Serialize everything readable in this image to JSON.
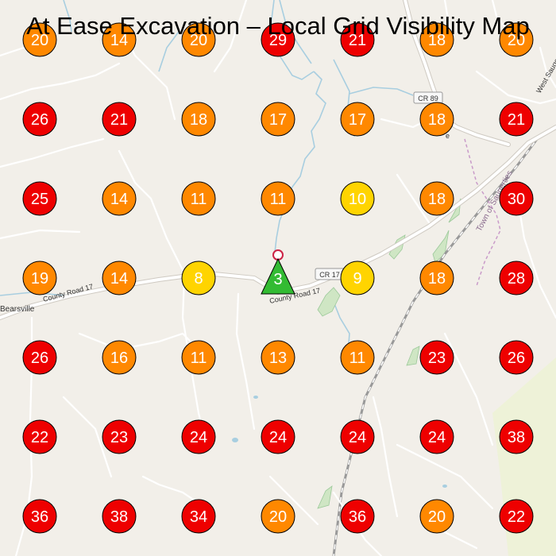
{
  "title": "At Ease Excavation – Local Grid Visibility Map",
  "colors": {
    "red": "#ee0000",
    "orange": "#ff8800",
    "yellow": "#ffd400",
    "center": "#33bb33",
    "water": "#a8cee0",
    "road": "#ffffff",
    "background": "#f2efe9"
  },
  "color_thresholds": {
    "yellow_max": 10,
    "orange_max": 20
  },
  "map_labels": {
    "road_cr89": "CR 89",
    "road_cr17": "CR 17",
    "county_road_west": "County Road 17",
    "county_road_center": "County Road 17",
    "place_bearsville": "Bearsville",
    "road_west_saugerties": "West Saugerties",
    "town_label": "Town of Saugerties",
    "letter_e": "e"
  },
  "center_marker": {
    "rank": "3",
    "icon": "map-pin-icon"
  },
  "grid": {
    "rows": [
      [
        "20",
        "14",
        "20",
        "29",
        "21",
        "18",
        "20"
      ],
      [
        "26",
        "21",
        "18",
        "17",
        "17",
        "18",
        "21"
      ],
      [
        "25",
        "14",
        "11",
        "11",
        "10",
        "18",
        "30"
      ],
      [
        "19",
        "14",
        "8",
        "3",
        "9",
        "18",
        "28"
      ],
      [
        "26",
        "16",
        "11",
        "13",
        "11",
        "23",
        "26"
      ],
      [
        "22",
        "23",
        "24",
        "24",
        "24",
        "24",
        "38"
      ],
      [
        "36",
        "38",
        "34",
        "20",
        "36",
        "20",
        "22"
      ]
    ]
  }
}
